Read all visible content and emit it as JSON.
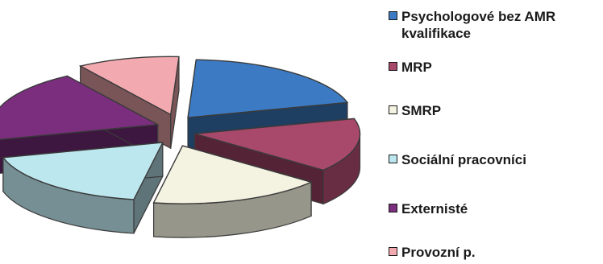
{
  "chart_data": {
    "type": "pie",
    "title": "",
    "style": "3d-exploded",
    "legend_position": "right",
    "slices": [
      {
        "label": "Psychologové bez AMR kvalifikace",
        "value": 20,
        "color": "#3c7bc4"
      },
      {
        "label": "MRP",
        "value": 15,
        "color": "#a8486b"
      },
      {
        "label": "SMRP",
        "value": 17,
        "color": "#f4f2e0"
      },
      {
        "label": "Sociální pracovníci",
        "value": 18,
        "color": "#bde7ef"
      },
      {
        "label": "Externisté",
        "value": 20,
        "color": "#7a2e7d"
      },
      {
        "label": "Provozní p.",
        "value": 10,
        "color": "#f2aab0"
      }
    ]
  }
}
